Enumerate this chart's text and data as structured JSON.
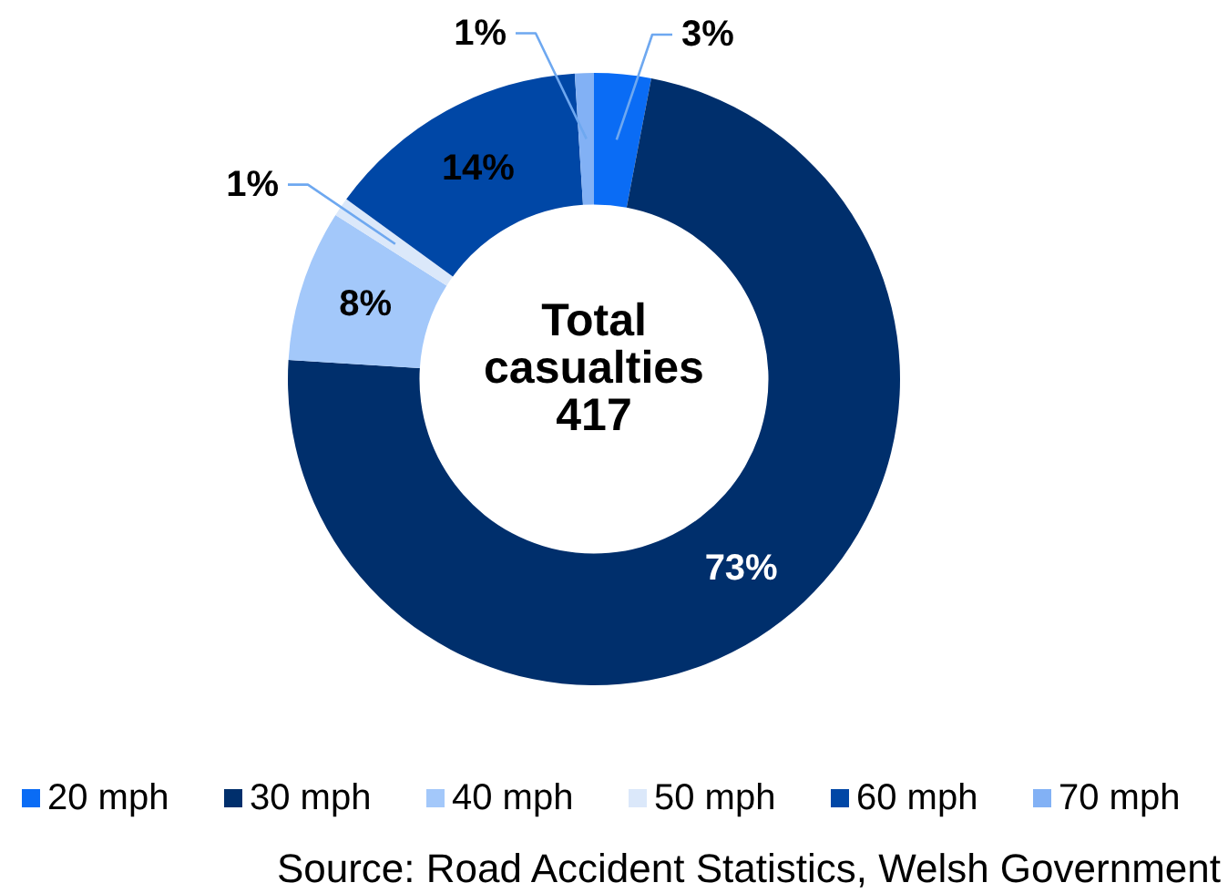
{
  "chart_data": {
    "type": "donut",
    "categories": [
      "20 mph",
      "30 mph",
      "40 mph",
      "50 mph",
      "60 mph",
      "70 mph"
    ],
    "values": [
      3,
      73,
      8,
      1,
      14,
      1
    ],
    "colors": [
      "#0a6cf5",
      "#002f6c",
      "#a3c8fa",
      "#dbe8fa",
      "#0047a6",
      "#82b1f5"
    ],
    "value_labels": [
      "3%",
      "73%",
      "8%",
      "1%",
      "14%",
      "1%"
    ],
    "legend": "bottom",
    "annotations": [
      "Total\ncasualties\n417",
      "Source: Road Accident Statistics, Welsh Government"
    ]
  }
}
